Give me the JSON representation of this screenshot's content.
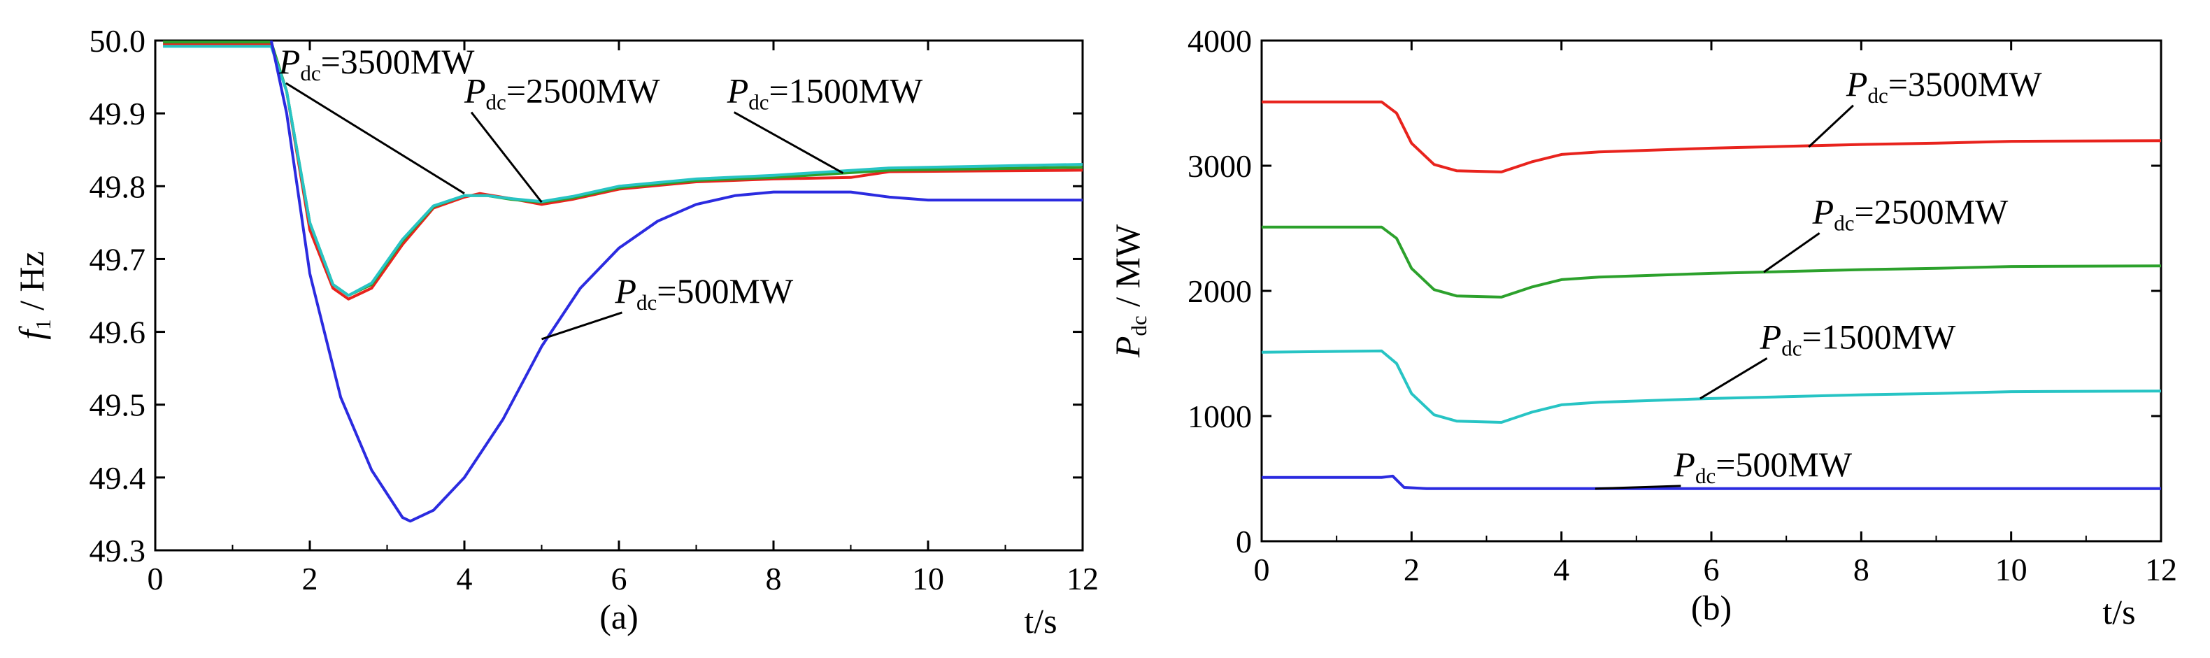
{
  "chart_data": [
    {
      "type": "line",
      "panel_label": "(a)",
      "xlabel": "t/s",
      "ylabel": {
        "main": "f",
        "sub": "1",
        "suffix": "/ Hz"
      },
      "xlim": [
        0,
        12
      ],
      "ylim": [
        49.3,
        50.0
      ],
      "x_ticks": [
        0,
        2,
        4,
        6,
        8,
        10,
        12
      ],
      "y_ticks": [
        "49.3",
        "49.4",
        "49.5",
        "49.6",
        "49.7",
        "49.8",
        "49.9",
        "50.0"
      ],
      "series": [
        {
          "name": "Pdc=3500MW",
          "color": "#e8231d",
          "points": [
            [
              0.1,
              49.995
            ],
            [
              1.5,
              49.995
            ],
            [
              1.7,
              49.93
            ],
            [
              2.0,
              49.74
            ],
            [
              2.3,
              49.66
            ],
            [
              2.5,
              49.645
            ],
            [
              2.8,
              49.66
            ],
            [
              3.2,
              49.72
            ],
            [
              3.6,
              49.77
            ],
            [
              4.0,
              49.785
            ],
            [
              4.2,
              49.79
            ],
            [
              4.6,
              49.783
            ],
            [
              5.0,
              49.775
            ],
            [
              5.4,
              49.782
            ],
            [
              6.0,
              49.796
            ],
            [
              7.0,
              49.806
            ],
            [
              8.0,
              49.81
            ],
            [
              9.0,
              49.812
            ],
            [
              9.5,
              49.82
            ],
            [
              12,
              49.822
            ]
          ]
        },
        {
          "name": "Pdc=2500MW",
          "color": "#2ca12c",
          "points": [
            [
              0.1,
              49.998
            ],
            [
              1.5,
              49.998
            ],
            [
              1.7,
              49.93
            ],
            [
              2.0,
              49.75
            ],
            [
              2.3,
              49.665
            ],
            [
              2.5,
              49.65
            ],
            [
              2.8,
              49.665
            ],
            [
              3.2,
              49.725
            ],
            [
              3.6,
              49.772
            ],
            [
              4.0,
              49.787
            ],
            [
              4.3,
              49.787
            ],
            [
              4.6,
              49.782
            ],
            [
              5.0,
              49.778
            ],
            [
              5.4,
              49.784
            ],
            [
              6.0,
              49.798
            ],
            [
              7.0,
              49.808
            ],
            [
              8.0,
              49.812
            ],
            [
              9.5,
              49.822
            ],
            [
              12,
              49.826
            ]
          ]
        },
        {
          "name": "Pdc=1500MW",
          "color": "#27c4c4",
          "points": [
            [
              0.1,
              49.992
            ],
            [
              1.5,
              49.992
            ],
            [
              1.7,
              49.93
            ],
            [
              2.0,
              49.75
            ],
            [
              2.3,
              49.665
            ],
            [
              2.5,
              49.65
            ],
            [
              2.8,
              49.667
            ],
            [
              3.2,
              49.727
            ],
            [
              3.6,
              49.773
            ],
            [
              4.0,
              49.787
            ],
            [
              4.3,
              49.787
            ],
            [
              4.6,
              49.783
            ],
            [
              5.0,
              49.779
            ],
            [
              5.4,
              49.786
            ],
            [
              6.0,
              49.8
            ],
            [
              7.0,
              49.81
            ],
            [
              8.0,
              49.815
            ],
            [
              9.5,
              49.825
            ],
            [
              12,
              49.83
            ]
          ]
        },
        {
          "name": "Pdc=500MW",
          "color": "#2b2be0",
          "points": [
            [
              1.5,
              50.0
            ],
            [
              1.7,
              49.9
            ],
            [
              2.0,
              49.68
            ],
            [
              2.4,
              49.51
            ],
            [
              2.8,
              49.41
            ],
            [
              3.2,
              49.345
            ],
            [
              3.3,
              49.34
            ],
            [
              3.6,
              49.355
            ],
            [
              4.0,
              49.4
            ],
            [
              4.5,
              49.48
            ],
            [
              5.0,
              49.58
            ],
            [
              5.5,
              49.66
            ],
            [
              6.0,
              49.715
            ],
            [
              6.5,
              49.752
            ],
            [
              7.0,
              49.775
            ],
            [
              7.5,
              49.787
            ],
            [
              8.0,
              49.792
            ],
            [
              9.0,
              49.792
            ],
            [
              9.5,
              49.785
            ],
            [
              10.0,
              49.781
            ],
            [
              12,
              49.781
            ]
          ]
        }
      ],
      "annotations": [
        {
          "text": "=3500MW",
          "symbol": "P",
          "sub": "dc",
          "x": 1.6,
          "y": 49.955,
          "arrow_to": [
            4.0,
            49.79
          ]
        },
        {
          "text": "=2500MW",
          "symbol": "P",
          "sub": "dc",
          "x": 4.0,
          "y": 49.915,
          "arrow_to": [
            5.0,
            49.778
          ]
        },
        {
          "text": "=1500MW",
          "symbol": "P",
          "sub": "dc",
          "x": 7.4,
          "y": 49.915,
          "arrow_to": [
            8.9,
            49.818
          ]
        },
        {
          "text": "=500MW",
          "symbol": "P",
          "sub": "dc",
          "x": 5.95,
          "y": 49.64,
          "arrow_to": [
            5.0,
            49.59
          ]
        }
      ]
    },
    {
      "type": "line",
      "panel_label": "(b)",
      "xlabel": "t/s",
      "ylabel": {
        "main": "P",
        "sub": "dc",
        "suffix": "/ MW"
      },
      "xlim": [
        0,
        12
      ],
      "ylim": [
        0,
        4000
      ],
      "x_ticks": [
        0,
        2,
        4,
        6,
        8,
        10,
        12
      ],
      "y_ticks": [
        "0",
        "1000",
        "2000",
        "3000",
        "4000"
      ],
      "series": [
        {
          "name": "Pdc=3500MW",
          "color": "#e8231d",
          "points": [
            [
              0,
              3510
            ],
            [
              1.6,
              3510
            ],
            [
              1.8,
              3420
            ],
            [
              2.0,
              3180
            ],
            [
              2.3,
              3010
            ],
            [
              2.6,
              2960
            ],
            [
              3.2,
              2950
            ],
            [
              3.6,
              3030
            ],
            [
              4.0,
              3090
            ],
            [
              4.5,
              3110
            ],
            [
              5.0,
              3120
            ],
            [
              6.0,
              3140
            ],
            [
              7.0,
              3155
            ],
            [
              8.0,
              3170
            ],
            [
              9.0,
              3180
            ],
            [
              10.0,
              3195
            ],
            [
              12,
              3200
            ]
          ]
        },
        {
          "name": "Pdc=2500MW",
          "color": "#2ca12c",
          "points": [
            [
              0,
              2510
            ],
            [
              1.6,
              2510
            ],
            [
              1.8,
              2420
            ],
            [
              2.0,
              2180
            ],
            [
              2.3,
              2010
            ],
            [
              2.6,
              1960
            ],
            [
              3.2,
              1950
            ],
            [
              3.6,
              2030
            ],
            [
              4.0,
              2090
            ],
            [
              4.5,
              2110
            ],
            [
              5.0,
              2120
            ],
            [
              6.0,
              2140
            ],
            [
              7.0,
              2155
            ],
            [
              8.0,
              2170
            ],
            [
              9.0,
              2180
            ],
            [
              10.0,
              2195
            ],
            [
              12,
              2200
            ]
          ]
        },
        {
          "name": "Pdc=1500MW",
          "color": "#27c4c4",
          "points": [
            [
              0,
              1510
            ],
            [
              1.6,
              1520
            ],
            [
              1.8,
              1420
            ],
            [
              2.0,
              1180
            ],
            [
              2.3,
              1010
            ],
            [
              2.6,
              960
            ],
            [
              3.2,
              950
            ],
            [
              3.6,
              1030
            ],
            [
              4.0,
              1090
            ],
            [
              4.5,
              1110
            ],
            [
              5.0,
              1120
            ],
            [
              6.0,
              1140
            ],
            [
              7.0,
              1155
            ],
            [
              8.0,
              1170
            ],
            [
              9.0,
              1180
            ],
            [
              10.0,
              1195
            ],
            [
              12,
              1200
            ]
          ]
        },
        {
          "name": "Pdc=500MW",
          "color": "#2b2be0",
          "points": [
            [
              0,
              510
            ],
            [
              1.6,
              510
            ],
            [
              1.75,
              520
            ],
            [
              1.9,
              430
            ],
            [
              2.2,
              420
            ],
            [
              4.0,
              420
            ],
            [
              6.0,
              420
            ],
            [
              8.0,
              420
            ],
            [
              10.0,
              420
            ],
            [
              12,
              420
            ]
          ]
        }
      ],
      "annotations": [
        {
          "text": "=3500MW",
          "symbol": "P",
          "sub": "dc",
          "x": 7.8,
          "y": 3560,
          "arrow_to": [
            7.3,
            3150
          ]
        },
        {
          "text": "=2500MW",
          "symbol": "P",
          "sub": "dc",
          "x": 7.35,
          "y": 2540,
          "arrow_to": [
            6.7,
            2150
          ]
        },
        {
          "text": "=1500MW",
          "symbol": "P",
          "sub": "dc",
          "x": 6.65,
          "y": 1540,
          "arrow_to": [
            5.85,
            1140
          ]
        },
        {
          "text": "=500MW",
          "symbol": "P",
          "sub": "dc",
          "x": 5.5,
          "y": 520,
          "arrow_to": [
            4.45,
            420
          ]
        }
      ]
    }
  ]
}
